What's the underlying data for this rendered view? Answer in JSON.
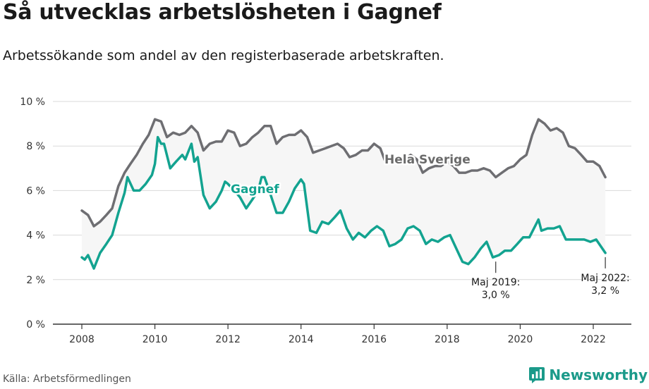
{
  "title": "Så utvecklas arbetslösheten i Gagnef",
  "subtitle": "Arbetssökande som andel av den registerbaserade arbetskraften.",
  "source": "Källa: Arbetsförmedlingen",
  "brand": "Newsworthy",
  "colors": {
    "sverige": "#6e6e72",
    "gagnef": "#13a390",
    "band": "#f6f6f6",
    "axis": "#333333"
  },
  "chart_data": {
    "type": "line",
    "title": "Så utvecklas arbetslösheten i Gagnef",
    "xlabel": "",
    "ylabel": "",
    "xlim": [
      2007.6,
      2023.1
    ],
    "ylim": [
      0,
      10
    ],
    "y_ticks": [
      0,
      2,
      4,
      6,
      8,
      10
    ],
    "y_tick_labels": [
      "0 %",
      "2 %",
      "4 %",
      "6 %",
      "8 %",
      "10 %"
    ],
    "x_ticks": [
      2008,
      2010,
      2012,
      2014,
      2016,
      2018,
      2020,
      2022
    ],
    "x_tick_labels": [
      "2008",
      "2010",
      "2012",
      "2014",
      "2016",
      "2018",
      "2020",
      "2022"
    ],
    "series": [
      {
        "name": "Hela Sverige",
        "label": "Hela Sverige",
        "points": [
          [
            2008.0,
            5.1
          ],
          [
            2008.17,
            4.9
          ],
          [
            2008.33,
            4.4
          ],
          [
            2008.5,
            4.6
          ],
          [
            2008.67,
            4.9
          ],
          [
            2008.83,
            5.2
          ],
          [
            2009.0,
            6.2
          ],
          [
            2009.17,
            6.8
          ],
          [
            2009.33,
            7.2
          ],
          [
            2009.5,
            7.6
          ],
          [
            2009.67,
            8.1
          ],
          [
            2009.83,
            8.5
          ],
          [
            2010.0,
            9.2
          ],
          [
            2010.17,
            9.1
          ],
          [
            2010.33,
            8.4
          ],
          [
            2010.5,
            8.6
          ],
          [
            2010.67,
            8.5
          ],
          [
            2010.83,
            8.6
          ],
          [
            2011.0,
            8.9
          ],
          [
            2011.17,
            8.6
          ],
          [
            2011.33,
            7.8
          ],
          [
            2011.5,
            8.1
          ],
          [
            2011.67,
            8.2
          ],
          [
            2011.83,
            8.2
          ],
          [
            2012.0,
            8.7
          ],
          [
            2012.17,
            8.6
          ],
          [
            2012.33,
            8.0
          ],
          [
            2012.5,
            8.1
          ],
          [
            2012.67,
            8.4
          ],
          [
            2012.83,
            8.6
          ],
          [
            2013.0,
            8.9
          ],
          [
            2013.17,
            8.9
          ],
          [
            2013.33,
            8.1
          ],
          [
            2013.5,
            8.4
          ],
          [
            2013.67,
            8.5
          ],
          [
            2013.83,
            8.5
          ],
          [
            2014.0,
            8.7
          ],
          [
            2014.17,
            8.4
          ],
          [
            2014.33,
            7.7
          ],
          [
            2014.5,
            7.8
          ],
          [
            2014.67,
            7.9
          ],
          [
            2014.83,
            8.0
          ],
          [
            2015.0,
            8.1
          ],
          [
            2015.17,
            7.9
          ],
          [
            2015.33,
            7.5
          ],
          [
            2015.5,
            7.6
          ],
          [
            2015.67,
            7.8
          ],
          [
            2015.83,
            7.8
          ],
          [
            2016.0,
            8.1
          ],
          [
            2016.17,
            7.9
          ],
          [
            2016.33,
            7.2
          ],
          [
            2016.5,
            7.3
          ],
          [
            2016.67,
            7.4
          ],
          [
            2016.83,
            7.4
          ],
          [
            2017.0,
            7.6
          ],
          [
            2017.17,
            7.4
          ],
          [
            2017.33,
            6.8
          ],
          [
            2017.5,
            7.0
          ],
          [
            2017.67,
            7.1
          ],
          [
            2017.83,
            7.1
          ],
          [
            2018.0,
            7.3
          ],
          [
            2018.17,
            7.1
          ],
          [
            2018.33,
            6.8
          ],
          [
            2018.5,
            6.8
          ],
          [
            2018.67,
            6.9
          ],
          [
            2018.83,
            6.9
          ],
          [
            2019.0,
            7.0
          ],
          [
            2019.17,
            6.9
          ],
          [
            2019.33,
            6.6
          ],
          [
            2019.5,
            6.8
          ],
          [
            2019.67,
            7.0
          ],
          [
            2019.83,
            7.1
          ],
          [
            2020.0,
            7.4
          ],
          [
            2020.17,
            7.6
          ],
          [
            2020.33,
            8.5
          ],
          [
            2020.5,
            9.2
          ],
          [
            2020.67,
            9.0
          ],
          [
            2020.83,
            8.7
          ],
          [
            2021.0,
            8.8
          ],
          [
            2021.17,
            8.6
          ],
          [
            2021.33,
            8.0
          ],
          [
            2021.5,
            7.9
          ],
          [
            2021.67,
            7.6
          ],
          [
            2021.83,
            7.3
          ],
          [
            2022.0,
            7.3
          ],
          [
            2022.17,
            7.1
          ],
          [
            2022.33,
            6.6
          ]
        ]
      },
      {
        "name": "Gagnef",
        "label": "Gagnef",
        "points": [
          [
            2008.0,
            3.0
          ],
          [
            2008.08,
            2.9
          ],
          [
            2008.17,
            3.1
          ],
          [
            2008.33,
            2.5
          ],
          [
            2008.5,
            3.2
          ],
          [
            2008.67,
            3.6
          ],
          [
            2008.83,
            4.0
          ],
          [
            2009.0,
            5.0
          ],
          [
            2009.17,
            5.9
          ],
          [
            2009.25,
            6.6
          ],
          [
            2009.42,
            6.0
          ],
          [
            2009.58,
            6.0
          ],
          [
            2009.75,
            6.3
          ],
          [
            2009.92,
            6.7
          ],
          [
            2010.0,
            7.2
          ],
          [
            2010.08,
            8.4
          ],
          [
            2010.17,
            8.1
          ],
          [
            2010.25,
            8.1
          ],
          [
            2010.42,
            7.0
          ],
          [
            2010.58,
            7.3
          ],
          [
            2010.75,
            7.6
          ],
          [
            2010.83,
            7.4
          ],
          [
            2011.0,
            8.1
          ],
          [
            2011.08,
            7.3
          ],
          [
            2011.17,
            7.5
          ],
          [
            2011.33,
            5.8
          ],
          [
            2011.5,
            5.2
          ],
          [
            2011.67,
            5.5
          ],
          [
            2011.83,
            6.0
          ],
          [
            2011.92,
            6.4
          ],
          [
            2012.0,
            6.3
          ],
          [
            2012.17,
            6.0
          ],
          [
            2012.33,
            5.7
          ],
          [
            2012.5,
            5.2
          ],
          [
            2012.67,
            5.6
          ],
          [
            2012.83,
            6.0
          ],
          [
            2012.92,
            6.6
          ],
          [
            2013.0,
            6.6
          ],
          [
            2013.17,
            5.8
          ],
          [
            2013.33,
            5.0
          ],
          [
            2013.5,
            5.0
          ],
          [
            2013.67,
            5.5
          ],
          [
            2013.83,
            6.1
          ],
          [
            2014.0,
            6.5
          ],
          [
            2014.08,
            6.3
          ],
          [
            2014.25,
            4.2
          ],
          [
            2014.42,
            4.1
          ],
          [
            2014.58,
            4.6
          ],
          [
            2014.75,
            4.5
          ],
          [
            2014.92,
            4.8
          ],
          [
            2015.08,
            5.1
          ],
          [
            2015.25,
            4.3
          ],
          [
            2015.42,
            3.8
          ],
          [
            2015.58,
            4.1
          ],
          [
            2015.75,
            3.9
          ],
          [
            2015.92,
            4.2
          ],
          [
            2016.08,
            4.4
          ],
          [
            2016.25,
            4.2
          ],
          [
            2016.42,
            3.5
          ],
          [
            2016.58,
            3.6
          ],
          [
            2016.75,
            3.8
          ],
          [
            2016.92,
            4.3
          ],
          [
            2017.08,
            4.4
          ],
          [
            2017.25,
            4.2
          ],
          [
            2017.42,
            3.6
          ],
          [
            2017.58,
            3.8
          ],
          [
            2017.75,
            3.7
          ],
          [
            2017.92,
            3.9
          ],
          [
            2018.08,
            4.0
          ],
          [
            2018.25,
            3.4
          ],
          [
            2018.42,
            2.8
          ],
          [
            2018.58,
            2.7
          ],
          [
            2018.75,
            3.0
          ],
          [
            2018.92,
            3.4
          ],
          [
            2019.08,
            3.7
          ],
          [
            2019.25,
            3.0
          ],
          [
            2019.42,
            3.1
          ],
          [
            2019.58,
            3.3
          ],
          [
            2019.75,
            3.3
          ],
          [
            2019.92,
            3.6
          ],
          [
            2020.08,
            3.9
          ],
          [
            2020.25,
            3.9
          ],
          [
            2020.5,
            4.7
          ],
          [
            2020.58,
            4.2
          ],
          [
            2020.75,
            4.3
          ],
          [
            2020.92,
            4.3
          ],
          [
            2021.08,
            4.4
          ],
          [
            2021.25,
            3.8
          ],
          [
            2021.42,
            3.8
          ],
          [
            2021.58,
            3.8
          ],
          [
            2021.75,
            3.8
          ],
          [
            2021.92,
            3.7
          ],
          [
            2022.08,
            3.8
          ],
          [
            2022.33,
            3.2
          ]
        ]
      }
    ],
    "annotations": [
      {
        "x": 2019.33,
        "y": 3.0,
        "lines": [
          "Maj 2019:",
          "3,0 %"
        ]
      },
      {
        "x": 2022.33,
        "y": 3.2,
        "lines": [
          "Maj 2022:",
          "3,2 %"
        ]
      }
    ]
  }
}
